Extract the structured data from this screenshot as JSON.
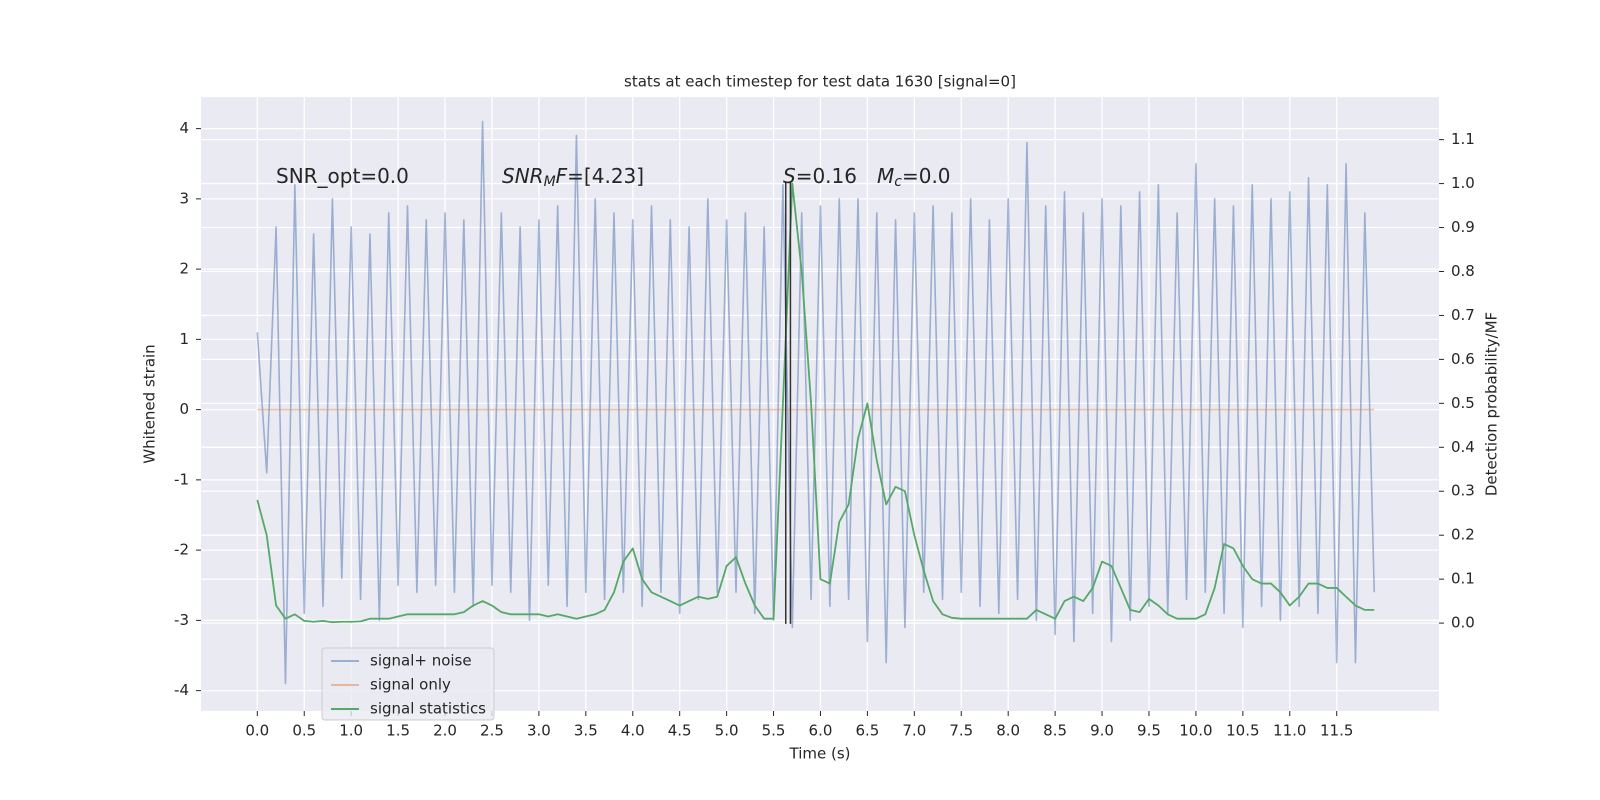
{
  "chart_data": {
    "type": "line",
    "title": "stats at each timestep for test data 1630 [signal=0]",
    "xlabel": "Time (s)",
    "ylabel": "Whitened strain",
    "y2label": "Detection probability/MF",
    "x": [
      0,
      0.1,
      0.2,
      0.3,
      0.4,
      0.5,
      0.6,
      0.7,
      0.8,
      0.9,
      1,
      1.1,
      1.2,
      1.3,
      1.4,
      1.5,
      1.6,
      1.7,
      1.8,
      1.9,
      2,
      2.1,
      2.2,
      2.3,
      2.4,
      2.5,
      2.6,
      2.7,
      2.8,
      2.9,
      3,
      3.1,
      3.2,
      3.3,
      3.4,
      3.5,
      3.6,
      3.7,
      3.8,
      3.9,
      4,
      4.1,
      4.2,
      4.3,
      4.4,
      4.5,
      4.6,
      4.7,
      4.8,
      4.9,
      5,
      5.1,
      5.2,
      5.3,
      5.4,
      5.5,
      5.6,
      5.7,
      5.8,
      5.9,
      6,
      6.1,
      6.2,
      6.3,
      6.4,
      6.5,
      6.6,
      6.7,
      6.8,
      6.9,
      7,
      7.1,
      7.2,
      7.3,
      7.4,
      7.5,
      7.6,
      7.7,
      7.8,
      7.9,
      8,
      8.1,
      8.2,
      8.3,
      8.4,
      8.5,
      8.6,
      8.7,
      8.8,
      8.9,
      9,
      9.1,
      9.2,
      9.3,
      9.4,
      9.5,
      9.6,
      9.7,
      9.8,
      9.9,
      10,
      10.1,
      10.2,
      10.3,
      10.4,
      10.5,
      10.6,
      10.7,
      10.8,
      10.9,
      11,
      11.1,
      11.2,
      11.3,
      11.4,
      11.5,
      11.6,
      11.7,
      11.8,
      11.9
    ],
    "series": [
      {
        "name": "signal+ noise",
        "color": "#4c72b0",
        "opacity": 0.5,
        "axis": "y",
        "values": [
          1.1,
          -0.9,
          2.6,
          -3.9,
          3.2,
          -2.9,
          2.5,
          -2.8,
          3.0,
          -2.4,
          2.6,
          -2.7,
          2.5,
          -3.0,
          2.8,
          -2.5,
          2.9,
          -2.6,
          2.7,
          -2.5,
          2.8,
          -2.6,
          2.7,
          -2.8,
          4.1,
          -2.5,
          2.8,
          -2.6,
          2.6,
          -3.0,
          2.7,
          -2.5,
          2.9,
          -2.8,
          3.9,
          -2.6,
          3.0,
          -2.7,
          2.8,
          -2.6,
          2.7,
          -2.8,
          2.9,
          -2.6,
          2.7,
          -2.9,
          2.6,
          -2.7,
          3.0,
          -2.6,
          2.7,
          -2.6,
          2.8,
          -2.9,
          2.6,
          -3.0,
          3.2,
          -3.1,
          2.8,
          -2.7,
          2.9,
          -2.8,
          3.0,
          -2.7,
          3.0,
          -3.3,
          2.8,
          -3.6,
          2.7,
          -3.1,
          2.8,
          -2.6,
          2.9,
          -2.7,
          2.8,
          -2.6,
          3.0,
          -2.8,
          2.7,
          -2.9,
          3.0,
          -2.7,
          3.8,
          -3.0,
          2.9,
          -3.2,
          3.1,
          -3.3,
          2.8,
          -2.9,
          3.0,
          -3.3,
          2.9,
          -3.0,
          3.1,
          -2.8,
          3.2,
          -2.9,
          2.8,
          -2.7,
          3.5,
          -2.6,
          3.0,
          -2.9,
          2.9,
          -3.1,
          3.2,
          -2.8,
          3.0,
          -3.0,
          3.1,
          -2.8,
          3.3,
          -2.9,
          3.2,
          -3.6,
          3.5,
          -3.6,
          2.8,
          -2.6
        ]
      },
      {
        "name": "signal only",
        "color": "#dd8452",
        "opacity": 0.5,
        "axis": "y",
        "x": [
          0,
          11.9
        ],
        "values": [
          0,
          0
        ]
      },
      {
        "name": "signal statistics",
        "color": "#55a868",
        "opacity": 1,
        "axis": "y2",
        "values": [
          0.28,
          0.2,
          0.04,
          0.01,
          0.02,
          0.005,
          0.003,
          0.005,
          0.002,
          0.003,
          0.003,
          0.004,
          0.01,
          0.01,
          0.01,
          0.015,
          0.02,
          0.02,
          0.02,
          0.02,
          0.02,
          0.02,
          0.025,
          0.04,
          0.05,
          0.04,
          0.025,
          0.02,
          0.02,
          0.02,
          0.02,
          0.015,
          0.02,
          0.015,
          0.01,
          0.015,
          0.02,
          0.03,
          0.07,
          0.14,
          0.17,
          0.1,
          0.07,
          0.06,
          0.05,
          0.04,
          0.05,
          0.06,
          0.055,
          0.06,
          0.13,
          0.15,
          0.09,
          0.04,
          0.01,
          0.01,
          0.5,
          1.0,
          0.8,
          0.5,
          0.1,
          0.09,
          0.23,
          0.27,
          0.42,
          0.5,
          0.37,
          0.27,
          0.31,
          0.3,
          0.2,
          0.12,
          0.05,
          0.02,
          0.012,
          0.01,
          0.01,
          0.01,
          0.01,
          0.01,
          0.01,
          0.01,
          0.01,
          0.03,
          0.02,
          0.01,
          0.05,
          0.06,
          0.05,
          0.08,
          0.14,
          0.13,
          0.08,
          0.03,
          0.025,
          0.055,
          0.04,
          0.02,
          0.01,
          0.01,
          0.01,
          0.02,
          0.08,
          0.18,
          0.17,
          0.13,
          0.1,
          0.09,
          0.09,
          0.07,
          0.04,
          0.06,
          0.09,
          0.09,
          0.08,
          0.08,
          0.06,
          0.04,
          0.03,
          0.03
        ]
      }
    ],
    "vlines": [
      {
        "x": 5.63,
        "ymin": -3.05,
        "ymax": 3.23,
        "color": "#333333"
      },
      {
        "x": 5.68,
        "ymin": -3.05,
        "ymax": 3.23,
        "color": "#333333"
      }
    ],
    "annotations": [
      [
        {
          "text": "SNR_opt=0.0",
          "italic": false,
          "sub": false
        }
      ],
      [
        {
          "text": "SNR",
          "italic": true,
          "sub": false
        },
        {
          "text": "M",
          "italic": true,
          "sub": true
        },
        {
          "text": "F",
          "italic": true,
          "sub": false
        },
        {
          "text": "=[4.23]",
          "italic": false,
          "sub": false
        }
      ],
      [
        {
          "text": "S",
          "italic": true,
          "sub": false
        },
        {
          "text": "=0.16",
          "italic": false,
          "sub": false
        }
      ],
      [
        {
          "text": "M",
          "italic": true,
          "sub": false
        },
        {
          "text": "c",
          "italic": true,
          "sub": true
        },
        {
          "text": "=0.0",
          "italic": false,
          "sub": false
        }
      ]
    ],
    "xlim": [
      -0.6,
      12.59
    ],
    "xticks": [
      {
        "value": 0,
        "label": "0.0"
      },
      0.5,
      {
        "value": 1,
        "label": "1.0"
      },
      1.5,
      {
        "value": 2,
        "label": "2.0"
      },
      2.5,
      {
        "value": 3,
        "label": "3.0"
      },
      3.5,
      {
        "value": 4,
        "label": "4.0"
      },
      4.5,
      {
        "value": 5,
        "label": "5.0"
      },
      5.5,
      {
        "value": 6,
        "label": "6.0"
      },
      6.5,
      {
        "value": 7,
        "label": "7.0"
      },
      7.5,
      {
        "value": 8,
        "label": "8.0"
      },
      8.5,
      {
        "value": 9,
        "label": "9.0"
      },
      9.5,
      {
        "value": 10,
        "label": "10.0"
      },
      10.5,
      {
        "value": 11,
        "label": "11.0"
      },
      11.5
    ],
    "ylim": [
      -4.29,
      4.45
    ],
    "yticks": [
      -4,
      -3,
      -2,
      -1,
      0,
      1,
      2,
      3,
      4
    ],
    "y2lim": [
      -0.2,
      1.197
    ],
    "y2ticks": [
      {
        "value": 0,
        "label": "0.0"
      },
      0.1,
      0.2,
      0.3,
      0.4,
      0.5,
      0.6,
      0.7,
      0.8,
      0.9,
      {
        "value": 1,
        "label": "1.0"
      },
      1.1
    ],
    "grid": true,
    "legend": "lower left"
  }
}
